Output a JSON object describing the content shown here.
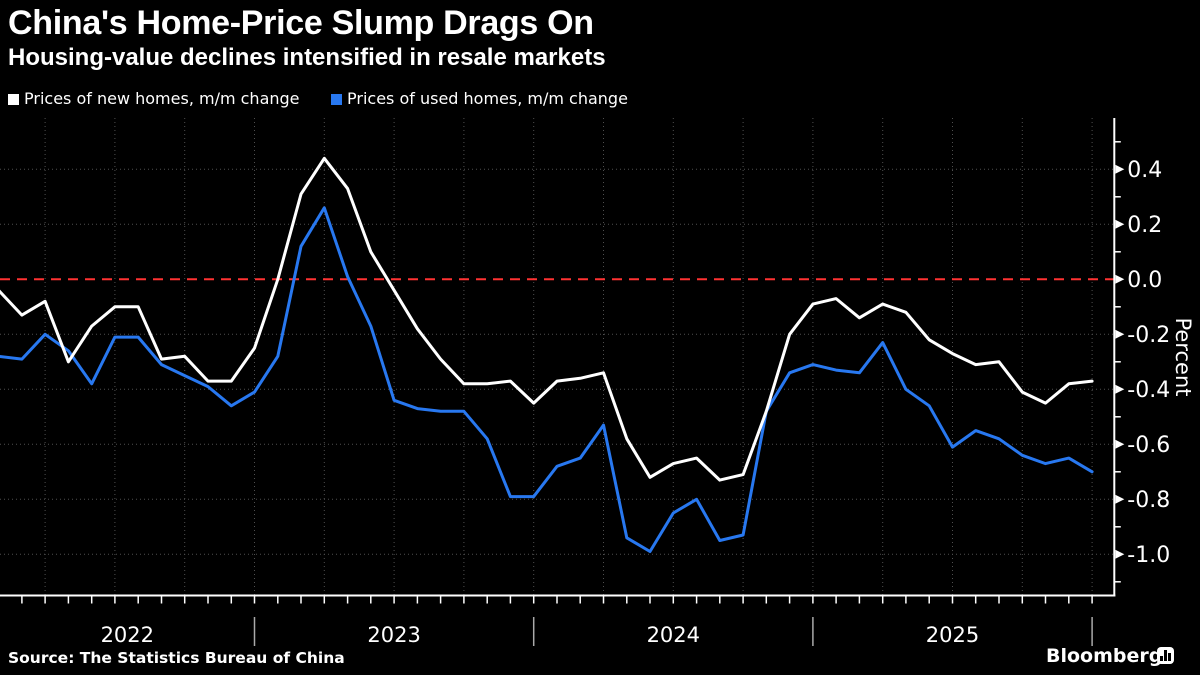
{
  "header": {
    "title": "China's Home-Price Slump Drags On",
    "subtitle": "Housing-value declines intensified in resale markets"
  },
  "legend": {
    "items": [
      {
        "label": "Prices of new homes, m/m change",
        "color": "#ffffff"
      },
      {
        "label": "Prices of used homes, m/m change",
        "color": "#2878f0"
      }
    ]
  },
  "footer": {
    "source": "Source: The Statistics Bureau of China",
    "brand": "Bloomberg"
  },
  "chart_data": {
    "type": "line",
    "title": "China's Home-Price Slump Drags On",
    "subtitle": "Housing-value declines intensified in resale markets",
    "ylabel": "Percent",
    "ylim": [
      -1.15,
      0.55
    ],
    "yticks": [
      0.4,
      0.2,
      0.0,
      -0.2,
      -0.4,
      -0.6,
      -0.8,
      -1.0
    ],
    "grid": "dotted, quarterly vertical and 0.2-step horizontal",
    "legend_position": "top-left",
    "zero_line_color": "#ff3232",
    "background_color": "#000000",
    "frequency": "monthly",
    "x_years": [
      "2022",
      "2023",
      "2024",
      "2025"
    ],
    "months": [
      "2022-01",
      "2022-02",
      "2022-03",
      "2022-04",
      "2022-05",
      "2022-06",
      "2022-07",
      "2022-08",
      "2022-09",
      "2022-10",
      "2022-11",
      "2022-12",
      "2023-01",
      "2023-02",
      "2023-03",
      "2023-04",
      "2023-05",
      "2023-06",
      "2023-07",
      "2023-08",
      "2023-09",
      "2023-10",
      "2023-11",
      "2023-12",
      "2024-01",
      "2024-02",
      "2024-03",
      "2024-04",
      "2024-05",
      "2024-06",
      "2024-07",
      "2024-08",
      "2024-09",
      "2024-10",
      "2024-11",
      "2024-12",
      "2025-01",
      "2025-02",
      "2025-03",
      "2025-04",
      "2025-05",
      "2025-06",
      "2025-07",
      "2025-08",
      "2025-09",
      "2025-10",
      "2025-11",
      "2025-12"
    ],
    "series": [
      {
        "name": "Prices of new homes, m/m change",
        "color": "#ffffff",
        "values": [
          -0.04,
          -0.13,
          -0.08,
          -0.3,
          -0.17,
          -0.1,
          -0.1,
          -0.29,
          -0.28,
          -0.37,
          -0.37,
          -0.25,
          0.0,
          0.31,
          0.44,
          0.33,
          0.1,
          -0.04,
          -0.18,
          -0.29,
          -0.38,
          -0.38,
          -0.37,
          -0.45,
          -0.37,
          -0.36,
          -0.34,
          -0.58,
          -0.72,
          -0.67,
          -0.65,
          -0.73,
          -0.71,
          -0.48,
          -0.2,
          -0.09,
          -0.07,
          -0.14,
          -0.09,
          -0.12,
          -0.22,
          -0.27,
          -0.31,
          -0.3,
          -0.41,
          -0.45,
          -0.38,
          -0.37
        ]
      },
      {
        "name": "Prices of used homes, m/m change",
        "color": "#2878f0",
        "values": [
          -0.28,
          -0.29,
          -0.2,
          -0.26,
          -0.38,
          -0.21,
          -0.21,
          -0.31,
          -0.35,
          -0.39,
          -0.46,
          -0.41,
          -0.28,
          0.12,
          0.26,
          0.01,
          -0.17,
          -0.44,
          -0.47,
          -0.48,
          -0.48,
          -0.58,
          -0.79,
          -0.79,
          -0.68,
          -0.65,
          -0.53,
          -0.94,
          -0.99,
          -0.85,
          -0.8,
          -0.95,
          -0.93,
          -0.48,
          -0.34,
          -0.31,
          -0.33,
          -0.34,
          -0.23,
          -0.4,
          -0.46,
          -0.61,
          -0.55,
          -0.58,
          -0.64,
          -0.67,
          -0.65,
          -0.7
        ]
      }
    ]
  }
}
